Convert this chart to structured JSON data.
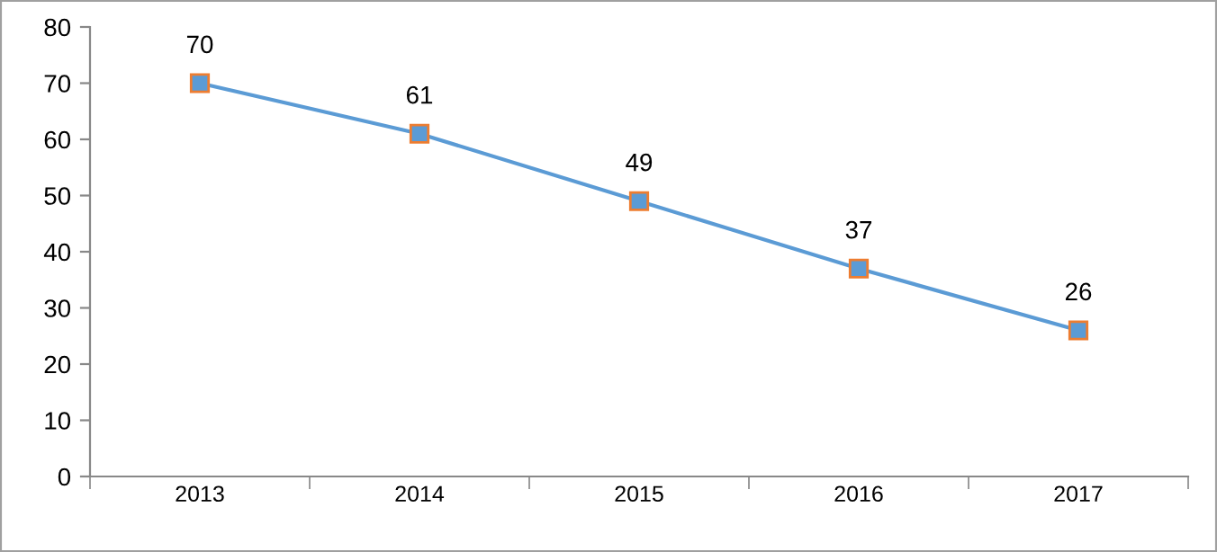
{
  "chart_data": {
    "type": "line",
    "categories": [
      "2013",
      "2014",
      "2015",
      "2016",
      "2017"
    ],
    "series": [
      {
        "color": "#5b9bd5",
        "values": [
          70,
          61,
          49,
          37,
          26
        ]
      }
    ],
    "ylim": [
      0,
      80
    ],
    "yticks": [
      0,
      10,
      20,
      30,
      40,
      50,
      60,
      70,
      80
    ],
    "grid": false,
    "legend": false,
    "marker": "square",
    "line_style": "solid",
    "data_labels": true
  }
}
